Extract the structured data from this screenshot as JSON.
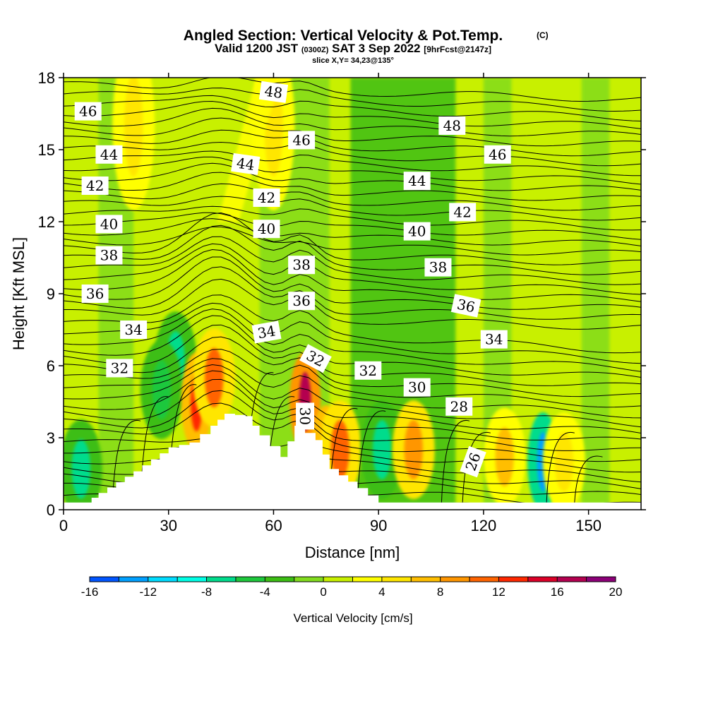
{
  "header": {
    "title": "Angled Section: Vertical Velocity & Pot.Temp.",
    "copyright": "(C)",
    "valid_a": "Valid 1200 JST",
    "valid_z": "(0300Z)",
    "valid_b": "SAT 3 Sep 2022",
    "fcst": "[9hrFcst@2147z]",
    "slice": "slice X,Y= 34,23@135°"
  },
  "chart_data": {
    "type": "heatmap",
    "title": "Angled Section: Vertical Velocity & Pot.Temp.",
    "xlabel": "Distance [nm]",
    "ylabel": "Height [Kft MSL]",
    "xlim": [
      0,
      165
    ],
    "ylim": [
      0,
      18
    ],
    "x_ticks": [
      "0",
      "30",
      "60",
      "90",
      "120",
      "150"
    ],
    "x_tick_values": [
      0,
      30,
      60,
      90,
      120,
      150
    ],
    "y_ticks": [
      "0",
      "3",
      "6",
      "9",
      "12",
      "15",
      "18"
    ],
    "y_tick_values": [
      0,
      3,
      6,
      9,
      12,
      15,
      18
    ],
    "colorbar": {
      "label": "Vertical Velocity [cm/s]",
      "tick_labels": [
        "-16",
        "-12",
        "-8",
        "-4",
        "0",
        "4",
        "8",
        "12",
        "16",
        "20"
      ],
      "tick_values": [
        -16,
        -12,
        -8,
        -4,
        0,
        4,
        8,
        12,
        16,
        20
      ],
      "levels": [
        -16,
        -14,
        -12,
        -10,
        -8,
        -6,
        -4,
        -2,
        0,
        2,
        4,
        6,
        8,
        10,
        12,
        14,
        16,
        18,
        20
      ],
      "colors": [
        "#0000ff",
        "#0055ff",
        "#00a0ff",
        "#00dcff",
        "#00ffe6",
        "#00dc8c",
        "#1ec83c",
        "#3cbe14",
        "#82dc1e",
        "#c8f000",
        "#ffff00",
        "#ffe600",
        "#ffbe00",
        "#ff9600",
        "#ff6400",
        "#ff2800",
        "#dc0028",
        "#b40050",
        "#8c0078",
        "#5a0096"
      ]
    },
    "pot_temp_contour_labels": [
      {
        "text": "48",
        "x": 60,
        "y": 17.4,
        "rot": 8
      },
      {
        "text": "46",
        "x": 7,
        "y": 16.6,
        "rot": 0
      },
      {
        "text": "48",
        "x": 111,
        "y": 16.0,
        "rot": 0
      },
      {
        "text": "46",
        "x": 68,
        "y": 15.4,
        "rot": 0
      },
      {
        "text": "44",
        "x": 13,
        "y": 14.8,
        "rot": 0
      },
      {
        "text": "46",
        "x": 124,
        "y": 14.8,
        "rot": 0
      },
      {
        "text": "44",
        "x": 52,
        "y": 14.4,
        "rot": 8
      },
      {
        "text": "44",
        "x": 101,
        "y": 13.7,
        "rot": 0
      },
      {
        "text": "42",
        "x": 9,
        "y": 13.5,
        "rot": 0
      },
      {
        "text": "42",
        "x": 58,
        "y": 13.0,
        "rot": 0
      },
      {
        "text": "42",
        "x": 114,
        "y": 12.4,
        "rot": 0
      },
      {
        "text": "40",
        "x": 13,
        "y": 11.9,
        "rot": 0
      },
      {
        "text": "40",
        "x": 58,
        "y": 11.7,
        "rot": 0
      },
      {
        "text": "40",
        "x": 101,
        "y": 11.6,
        "rot": 0
      },
      {
        "text": "38",
        "x": 13,
        "y": 10.6,
        "rot": 0
      },
      {
        "text": "38",
        "x": 68,
        "y": 10.2,
        "rot": 0
      },
      {
        "text": "38",
        "x": 107,
        "y": 10.1,
        "rot": 0
      },
      {
        "text": "36",
        "x": 9,
        "y": 9.0,
        "rot": 0
      },
      {
        "text": "36",
        "x": 68,
        "y": 8.7,
        "rot": 0
      },
      {
        "text": "36",
        "x": 115,
        "y": 8.5,
        "rot": 12
      },
      {
        "text": "34",
        "x": 20,
        "y": 7.5,
        "rot": 0
      },
      {
        "text": "34",
        "x": 58,
        "y": 7.4,
        "rot": -10
      },
      {
        "text": "34",
        "x": 123,
        "y": 7.1,
        "rot": 0
      },
      {
        "text": "32",
        "x": 16,
        "y": 5.9,
        "rot": 0
      },
      {
        "text": "32",
        "x": 72,
        "y": 6.3,
        "rot": 28
      },
      {
        "text": "32",
        "x": 87,
        "y": 5.8,
        "rot": 0
      },
      {
        "text": "30",
        "x": 101,
        "y": 5.1,
        "rot": 0
      },
      {
        "text": "30",
        "x": 69,
        "y": 3.9,
        "rot": 90
      },
      {
        "text": "28",
        "x": 113,
        "y": 4.3,
        "rot": 0
      },
      {
        "text": "26",
        "x": 117,
        "y": 2.0,
        "rot": -70
      }
    ],
    "terrain_profile_kft": [
      [
        0,
        0.3
      ],
      [
        6,
        0.3
      ],
      [
        10,
        0.7
      ],
      [
        20,
        1.6
      ],
      [
        30,
        2.6
      ],
      [
        36,
        2.8
      ],
      [
        42,
        3.5
      ],
      [
        46,
        4.0
      ],
      [
        52,
        3.9
      ],
      [
        56,
        3.1
      ],
      [
        62,
        2.2
      ],
      [
        66,
        3.5
      ],
      [
        72,
        2.9
      ],
      [
        76,
        1.7
      ],
      [
        84,
        0.9
      ],
      [
        90,
        0.3
      ],
      [
        165,
        0.3
      ]
    ],
    "vertical_velocity_features_cm_s": [
      {
        "x": 32,
        "y": 6.2,
        "value": -8
      },
      {
        "x": 28,
        "y": 5.0,
        "value": -6
      },
      {
        "x": 38,
        "y": 4.5,
        "value": 12
      },
      {
        "x": 43,
        "y": 5.5,
        "value": 10
      },
      {
        "x": 69,
        "y": 4.5,
        "value": 16
      },
      {
        "x": 75,
        "y": 2.3,
        "value": 12
      },
      {
        "x": 79,
        "y": 2.5,
        "value": 10
      },
      {
        "x": 91,
        "y": 2.5,
        "value": -8
      },
      {
        "x": 100,
        "y": 2.5,
        "value": 8
      },
      {
        "x": 126,
        "y": 2.2,
        "value": 6
      },
      {
        "x": 137,
        "y": 2.0,
        "value": -14
      },
      {
        "x": 143,
        "y": 2.0,
        "value": 4
      },
      {
        "x": 5,
        "y": 1.7,
        "value": -8
      },
      {
        "x": 60,
        "y": 16.0,
        "value": 4
      },
      {
        "x": 20,
        "y": 16.0,
        "value": 4
      }
    ]
  }
}
